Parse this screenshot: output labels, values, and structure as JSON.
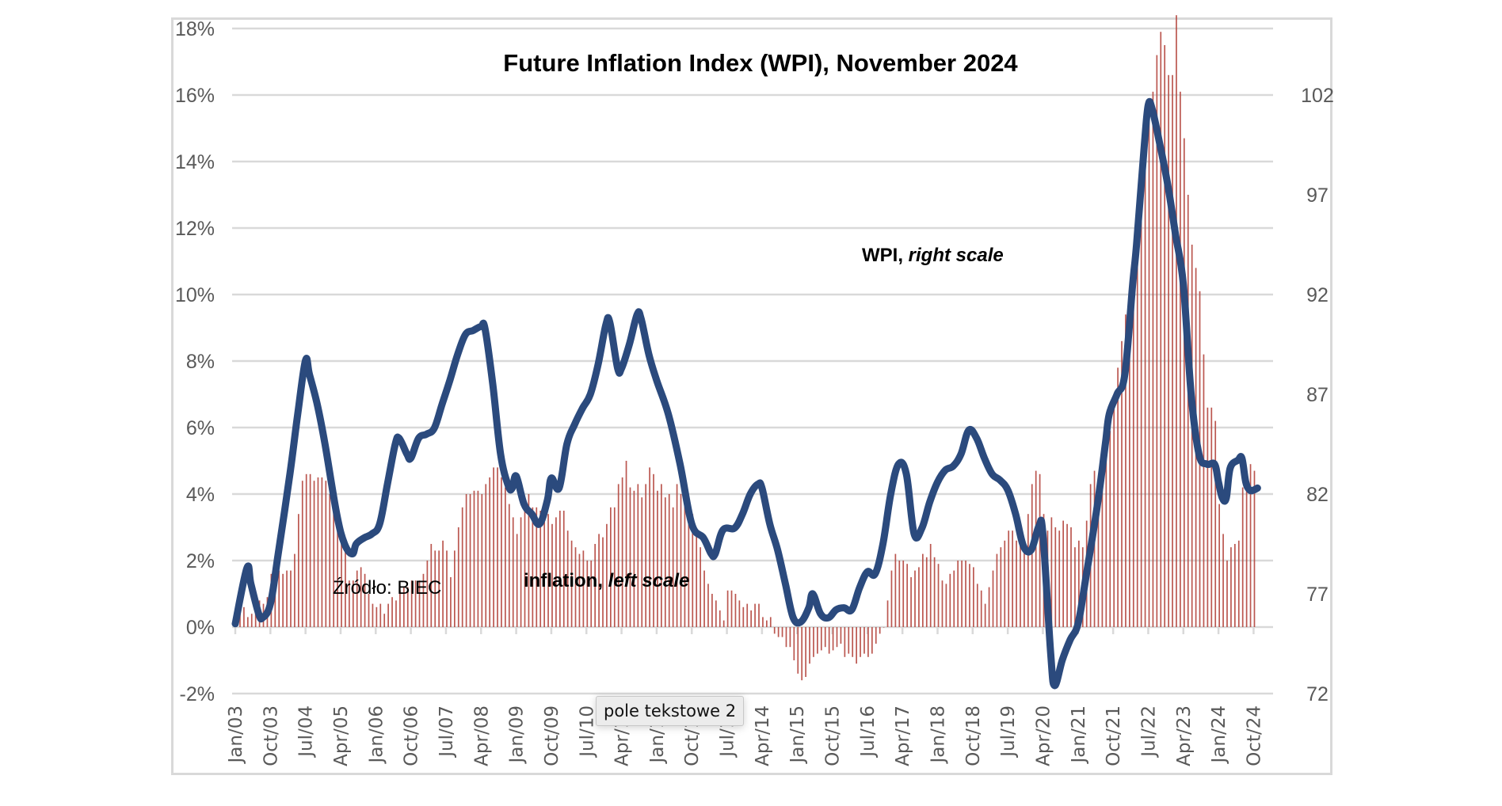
{
  "chart_data": {
    "type": "bar+line",
    "title": "Future Inflation Index (WPI), November 2024",
    "source": "Źródło: BIEC",
    "annotations": {
      "wpi_label_bold": "WPI,",
      "wpi_label_italic": "right scale",
      "inflation_label_bold": "inflation,",
      "inflation_label_italic": "left scale"
    },
    "left_axis": {
      "label": "",
      "ylim": [
        -2,
        18
      ],
      "ticks": [
        -2,
        0,
        2,
        4,
        6,
        8,
        10,
        12,
        14,
        16,
        18
      ],
      "tick_labels": [
        "-2%",
        "0%",
        "2%",
        "4%",
        "6%",
        "8%",
        "10%",
        "12%",
        "14%",
        "16%",
        "18%"
      ],
      "grid": true
    },
    "right_axis": {
      "label": "",
      "ylim": [
        72,
        105.33
      ],
      "ticks": [
        72,
        77,
        82,
        87,
        92,
        97,
        102
      ],
      "tick_labels": [
        "72",
        "77",
        "82",
        "87",
        "92",
        "97",
        "102"
      ]
    },
    "x_axis": {
      "start": "Jan/03",
      "tick_every_months": 9,
      "tick_labels": [
        "Jan/03",
        "Oct/03",
        "Jul/04",
        "Apr/05",
        "Jan/06",
        "Oct/06",
        "Jul/07",
        "Apr/08",
        "Jan/09",
        "Oct/09",
        "Jul/10",
        "Apr/11",
        "Jan/12",
        "Oct/12",
        "Jul/13",
        "Apr/14",
        "Jan/15",
        "Oct/15",
        "Jul/16",
        "Apr/17",
        "Jan/18",
        "Oct/18",
        "Jul/19",
        "Apr/20",
        "Jan/21",
        "Oct/21",
        "Jul/22",
        "Apr/23",
        "Jan/24",
        "Oct/24"
      ]
    },
    "series": [
      {
        "name": "inflation",
        "axis": "left",
        "type": "bar",
        "color": "#b4453d",
        "unit": "%",
        "monthly_by_year": {
          "2003": [
            0.5,
            0.5,
            0.6,
            0.3,
            0.4,
            0.8,
            0.8,
            0.7,
            0.9,
            1.6,
            1.6,
            1.7
          ],
          "2004": [
            1.6,
            1.7,
            1.7,
            2.2,
            3.4,
            4.4,
            4.6,
            4.6,
            4.4,
            4.5,
            4.5,
            4.4
          ],
          "2005": [
            4.0,
            3.6,
            3.4,
            3.0,
            2.5,
            1.4,
            1.4,
            1.7,
            1.8,
            1.6,
            1.0,
            0.7
          ],
          "2006": [
            0.6,
            0.7,
            0.4,
            0.7,
            0.9,
            0.8,
            1.1,
            1.2,
            1.2,
            1.4,
            1.4,
            1.4
          ],
          "2007": [
            1.6,
            2.0,
            2.5,
            2.3,
            2.3,
            2.6,
            2.3,
            1.5,
            2.3,
            3.0,
            3.6,
            4.0
          ],
          "2008": [
            4.0,
            4.1,
            4.1,
            4.0,
            4.3,
            4.5,
            4.8,
            4.8,
            4.5,
            4.2,
            3.7,
            3.3
          ],
          "2009": [
            2.8,
            3.3,
            3.6,
            4.0,
            3.6,
            3.6,
            3.5,
            3.7,
            3.4,
            3.1,
            3.3,
            3.5
          ],
          "2010": [
            3.5,
            2.9,
            2.6,
            2.4,
            2.2,
            2.3,
            2.0,
            2.0,
            2.5,
            2.8,
            2.7,
            3.1
          ],
          "2011": [
            3.6,
            3.6,
            4.3,
            4.5,
            5.0,
            4.2,
            4.1,
            4.3,
            3.9,
            4.3,
            4.8,
            4.6
          ],
          "2012": [
            4.1,
            4.3,
            3.9,
            4.0,
            3.6,
            4.3,
            4.0,
            3.8,
            3.8,
            3.4,
            2.8,
            2.4
          ],
          "2013": [
            1.7,
            1.3,
            1.0,
            0.8,
            0.5,
            0.2,
            1.1,
            1.1,
            1.0,
            0.8,
            0.6,
            0.7
          ],
          "2014": [
            0.5,
            0.7,
            0.7,
            0.3,
            0.2,
            0.3,
            -0.2,
            -0.3,
            -0.3,
            -0.6,
            -0.6,
            -1.0
          ],
          "2015": [
            -1.4,
            -1.6,
            -1.5,
            -1.1,
            -0.9,
            -0.8,
            -0.7,
            -0.6,
            -0.8,
            -0.7,
            -0.6,
            -0.5
          ],
          "2016": [
            -0.9,
            -0.8,
            -0.9,
            -1.1,
            -0.9,
            -0.8,
            -0.9,
            -0.8,
            -0.5,
            -0.2,
            0.0,
            0.8
          ],
          "2017": [
            1.7,
            2.2,
            2.0,
            2.0,
            1.9,
            1.5,
            1.7,
            1.8,
            2.2,
            2.1,
            2.5,
            2.1
          ],
          "2018": [
            1.9,
            1.4,
            1.3,
            1.6,
            1.7,
            2.0,
            2.0,
            2.0,
            1.9,
            1.8,
            1.3,
            1.1
          ],
          "2019": [
            0.7,
            1.2,
            1.7,
            2.2,
            2.4,
            2.6,
            2.9,
            2.9,
            2.6,
            2.5,
            2.6,
            3.4
          ],
          "2020": [
            4.3,
            4.7,
            4.6,
            3.4,
            2.9,
            3.3,
            3.0,
            2.9,
            3.2,
            3.1,
            3.0,
            2.4
          ],
          "2021": [
            2.6,
            2.4,
            3.2,
            4.3,
            4.7,
            4.4,
            5.0,
            5.5,
            5.9,
            6.8,
            7.8,
            8.6
          ],
          "2022": [
            9.4,
            8.5,
            11.0,
            12.4,
            13.9,
            15.5,
            15.6,
            16.1,
            17.2,
            17.9,
            17.5,
            16.6
          ],
          "2023": [
            16.6,
            18.4,
            16.1,
            14.7,
            13.0,
            11.5,
            10.8,
            10.1,
            8.2,
            6.6,
            6.6,
            6.2
          ],
          "2024": [
            3.7,
            2.8,
            2.0,
            2.4,
            2.5,
            2.6,
            4.2,
            4.3,
            4.9,
            4.7
          ]
        }
      },
      {
        "name": "WPI",
        "axis": "right",
        "type": "line",
        "color": "#2b4a7d",
        "points": [
          [
            "Jan/03",
            75.5
          ],
          [
            "Apr/03",
            78.3
          ],
          [
            "May/03",
            77.5
          ],
          [
            "Jul/03",
            76.0
          ],
          [
            "Aug/03",
            75.8
          ],
          [
            "Oct/03",
            76.5
          ],
          [
            "Dec/03",
            79.0
          ],
          [
            "Mar/04",
            83.0
          ],
          [
            "May/04",
            86.0
          ],
          [
            "Jul/04",
            88.7
          ],
          [
            "Aug/04",
            88.0
          ],
          [
            "Oct/04",
            86.5
          ],
          [
            "Dec/04",
            84.5
          ],
          [
            "Mar/05",
            81.0
          ],
          [
            "May/05",
            79.5
          ],
          [
            "Jul/05",
            79.0
          ],
          [
            "Aug/05",
            79.5
          ],
          [
            "Oct/05",
            79.8
          ],
          [
            "Dec/05",
            80.0
          ],
          [
            "Feb/06",
            80.5
          ],
          [
            "Apr/06",
            82.5
          ],
          [
            "Jun/06",
            84.5
          ],
          [
            "Jul/06",
            84.8
          ],
          [
            "Sep/06",
            84.0
          ],
          [
            "Oct/06",
            83.8
          ],
          [
            "Dec/06",
            84.8
          ],
          [
            "Feb/07",
            85.0
          ],
          [
            "Apr/07",
            85.3
          ],
          [
            "Jun/07",
            86.5
          ],
          [
            "Aug/07",
            87.7
          ],
          [
            "Oct/07",
            89.0
          ],
          [
            "Dec/07",
            90.0
          ],
          [
            "Feb/08",
            90.2
          ],
          [
            "Apr/08",
            90.4
          ],
          [
            "May/08",
            90.3
          ],
          [
            "Jul/08",
            87.5
          ],
          [
            "Sep/08",
            84.0
          ],
          [
            "Nov/08",
            82.4
          ],
          [
            "Dec/08",
            82.3
          ],
          [
            "Jan/09",
            82.9
          ],
          [
            "Mar/09",
            81.5
          ],
          [
            "May/09",
            81.0
          ],
          [
            "Jul/09",
            80.5
          ],
          [
            "Sep/09",
            81.7
          ],
          [
            "Oct/09",
            82.8
          ],
          [
            "Dec/09",
            82.3
          ],
          [
            "Feb/10",
            84.5
          ],
          [
            "Apr/10",
            85.5
          ],
          [
            "Jun/10",
            86.3
          ],
          [
            "Aug/10",
            87.0
          ],
          [
            "Oct/10",
            88.5
          ],
          [
            "Dec/10",
            90.5
          ],
          [
            "Jan/11",
            90.6
          ],
          [
            "Mar/11",
            88.3
          ],
          [
            "Apr/11",
            88.3
          ],
          [
            "Jun/11",
            89.5
          ],
          [
            "Aug/11",
            91.0
          ],
          [
            "Sep/11",
            90.8
          ],
          [
            "Nov/11",
            89.0
          ],
          [
            "Jan/12",
            87.7
          ],
          [
            "Apr/12",
            86.0
          ],
          [
            "Jul/12",
            83.5
          ],
          [
            "Oct/12",
            80.5
          ],
          [
            "Jan/13",
            79.8
          ],
          [
            "Mar/13",
            79.0
          ],
          [
            "Apr/13",
            79.0
          ],
          [
            "Jun/13",
            80.2
          ],
          [
            "Sep/13",
            80.3
          ],
          [
            "Nov/13",
            81.0
          ],
          [
            "Jan/14",
            82.0
          ],
          [
            "Mar/14",
            82.5
          ],
          [
            "Apr/14",
            82.3
          ],
          [
            "Jun/14",
            80.5
          ],
          [
            "Aug/14",
            79.2
          ],
          [
            "Oct/14",
            77.5
          ],
          [
            "Dec/14",
            75.8
          ],
          [
            "Feb/15",
            75.6
          ],
          [
            "Apr/15",
            76.3
          ],
          [
            "May/15",
            77.0
          ],
          [
            "Jul/15",
            76.0
          ],
          [
            "Sep/15",
            75.8
          ],
          [
            "Nov/15",
            76.2
          ],
          [
            "Jan/16",
            76.3
          ],
          [
            "Mar/16",
            76.2
          ],
          [
            "May/16",
            77.3
          ],
          [
            "Jul/16",
            78.1
          ],
          [
            "Sep/16",
            78.0
          ],
          [
            "Nov/16",
            79.5
          ],
          [
            "Jan/17",
            82.0
          ],
          [
            "Mar/17",
            83.5
          ],
          [
            "May/17",
            83.0
          ],
          [
            "Jul/17",
            80.0
          ],
          [
            "Sep/17",
            80.3
          ],
          [
            "Nov/17",
            81.6
          ],
          [
            "Jan/18",
            82.6
          ],
          [
            "Mar/18",
            83.2
          ],
          [
            "May/18",
            83.4
          ],
          [
            "Jul/18",
            84.0
          ],
          [
            "Sep/18",
            85.2
          ],
          [
            "Nov/18",
            84.8
          ],
          [
            "Jan/19",
            83.8
          ],
          [
            "Mar/19",
            83.0
          ],
          [
            "May/19",
            82.7
          ],
          [
            "Jul/19",
            82.2
          ],
          [
            "Sep/19",
            81.0
          ],
          [
            "Nov/19",
            79.4
          ],
          [
            "Jan/20",
            79.2
          ],
          [
            "Mar/20",
            80.4
          ],
          [
            "Apr/20",
            80.0
          ],
          [
            "Jun/20",
            74.0
          ],
          [
            "Jul/20",
            72.4
          ],
          [
            "Sep/20",
            73.7
          ],
          [
            "Nov/20",
            74.7
          ],
          [
            "Jan/21",
            75.5
          ],
          [
            "Mar/21",
            77.8
          ],
          [
            "Jun/21",
            81.5
          ],
          [
            "Aug/21",
            84.5
          ],
          [
            "Sep/21",
            86.0
          ],
          [
            "Nov/21",
            87.0
          ],
          [
            "Jan/22",
            88.0
          ],
          [
            "Mar/22",
            92.5
          ],
          [
            "Apr/22",
            94.5
          ],
          [
            "Jun/22",
            99.5
          ],
          [
            "Jul/22",
            101.5
          ],
          [
            "Aug/22",
            101.3
          ],
          [
            "Oct/22",
            99.5
          ],
          [
            "Dec/22",
            97.5
          ],
          [
            "Feb/23",
            95.0
          ],
          [
            "Apr/23",
            92.5
          ],
          [
            "Jun/23",
            87.0
          ],
          [
            "Aug/23",
            84.0
          ],
          [
            "Oct/23",
            83.5
          ],
          [
            "Dec/23",
            83.5
          ],
          [
            "Jan/24",
            82.6
          ],
          [
            "Feb/24",
            81.8
          ],
          [
            "Mar/24",
            81.8
          ],
          [
            "Apr/24",
            83.3
          ],
          [
            "Jun/24",
            83.7
          ],
          [
            "Jul/24",
            83.8
          ],
          [
            "Aug/24",
            82.6
          ],
          [
            "Sep/24",
            82.2
          ],
          [
            "Oct/24",
            82.2
          ],
          [
            "Nov/24",
            82.3
          ]
        ]
      }
    ],
    "legend": "none (inline annotations)"
  },
  "tooltip": {
    "text": "pole tekstowe 2"
  }
}
